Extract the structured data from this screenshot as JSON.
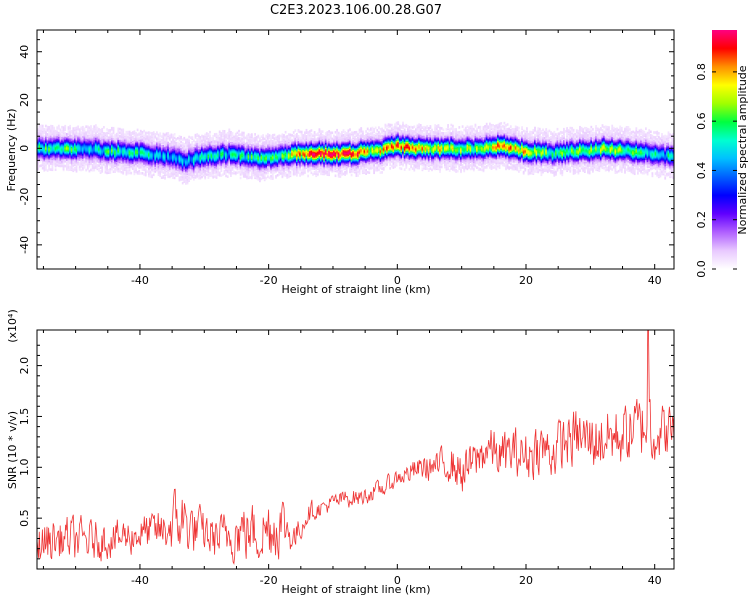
{
  "title": "C2E3.2023.106.00.28.G07",
  "chart_data": [
    {
      "type": "heatmap",
      "xlabel": "Height of straight line (km)",
      "ylabel": "Frequency (Hz)",
      "xlim": [
        -56,
        43
      ],
      "ylim": [
        -50,
        49
      ],
      "xticks": [
        -40,
        -20,
        0,
        20,
        40
      ],
      "yticks": [
        -40,
        -20,
        0,
        20,
        40
      ],
      "colorbar": {
        "label": "Normalized spectral amplitude",
        "range": [
          0.0,
          0.97
        ],
        "ticks": [
          "0.0",
          "0.2",
          "0.4",
          "0.6",
          "0.8"
        ],
        "tick_values": [
          0.0,
          0.2,
          0.4,
          0.6,
          0.8
        ],
        "colormap": [
          "#ffffff",
          "#e8c8ff",
          "#b060ff",
          "#6000ff",
          "#0000ff",
          "#0060ff",
          "#00c0ff",
          "#00ffd0",
          "#00ff40",
          "#a0ff00",
          "#ffff00",
          "#ff9000",
          "#ff0000",
          "#ff0080"
        ]
      },
      "ridge": {
        "x": [
          -56,
          -52,
          -48,
          -44,
          -40,
          -36,
          -33,
          -30,
          -26,
          -22,
          -18,
          -15,
          -12,
          -8,
          -4,
          0,
          4,
          8,
          12,
          16,
          20,
          24,
          28,
          32,
          36,
          40,
          42
        ],
        "frequency": [
          0,
          0,
          0,
          -1,
          -2,
          -3,
          -5,
          -3,
          -2,
          -4,
          -3,
          -2,
          -2,
          -2,
          -1,
          1,
          0,
          0,
          0,
          1,
          -1,
          -2,
          -1,
          0,
          -1,
          -2,
          -3
        ],
        "intensity": [
          0.55,
          0.6,
          0.5,
          0.55,
          0.5,
          0.45,
          0.45,
          0.5,
          0.5,
          0.55,
          0.6,
          0.8,
          0.95,
          0.95,
          0.7,
          0.85,
          0.75,
          0.7,
          0.65,
          0.8,
          0.75,
          0.6,
          0.6,
          0.65,
          0.6,
          0.5,
          0.5
        ]
      }
    },
    {
      "type": "line",
      "xlabel": "Height of straight line (km)",
      "ylabel": "SNR (10 * v/v)",
      "yscale_label": "(x10⁴)",
      "xlim": [
        -56,
        43
      ],
      "ylim": [
        0,
        2.35
      ],
      "xticks": [
        -40,
        -20,
        0,
        20,
        40
      ],
      "yticks": [
        0.5,
        1.0,
        1.5,
        2.0
      ],
      "ytick_labels": [
        "0.5",
        "1.0",
        "1.5",
        "2.0"
      ],
      "color": "#ee3333",
      "envelope": {
        "x": [
          -56,
          -52,
          -48,
          -44,
          -40,
          -36,
          -34,
          -32,
          -30,
          -28,
          -26,
          -24,
          -22,
          -20,
          -18,
          -16,
          -14,
          -12,
          -10,
          -8,
          -6,
          -4,
          -2,
          0,
          2,
          4,
          6,
          8,
          10,
          12,
          14,
          16,
          18,
          20,
          22,
          24,
          26,
          28,
          30,
          32,
          34,
          36,
          38,
          39,
          40,
          42
        ],
        "mean": [
          0.25,
          0.3,
          0.28,
          0.3,
          0.35,
          0.38,
          0.5,
          0.4,
          0.35,
          0.3,
          0.35,
          0.38,
          0.35,
          0.4,
          0.45,
          0.3,
          0.55,
          0.6,
          0.65,
          0.7,
          0.7,
          0.75,
          0.8,
          0.9,
          0.95,
          1.0,
          1.0,
          1.05,
          0.95,
          1.05,
          1.2,
          1.1,
          1.15,
          1.1,
          1.2,
          1.15,
          1.25,
          1.3,
          1.25,
          1.3,
          1.3,
          1.35,
          1.4,
          1.55,
          1.35,
          1.35
        ],
        "noise": [
          0.3,
          0.3,
          0.28,
          0.25,
          0.25,
          0.3,
          0.5,
          0.35,
          0.3,
          0.3,
          0.35,
          0.4,
          0.4,
          0.45,
          0.4,
          0.2,
          0.15,
          0.12,
          0.12,
          0.12,
          0.12,
          0.12,
          0.12,
          0.12,
          0.15,
          0.18,
          0.2,
          0.25,
          0.3,
          0.3,
          0.3,
          0.32,
          0.32,
          0.35,
          0.35,
          0.35,
          0.38,
          0.38,
          0.4,
          0.42,
          0.42,
          0.42,
          0.45,
          0.7,
          0.4,
          0.35
        ]
      },
      "peak": {
        "x": 39,
        "y": 2.35
      }
    }
  ]
}
